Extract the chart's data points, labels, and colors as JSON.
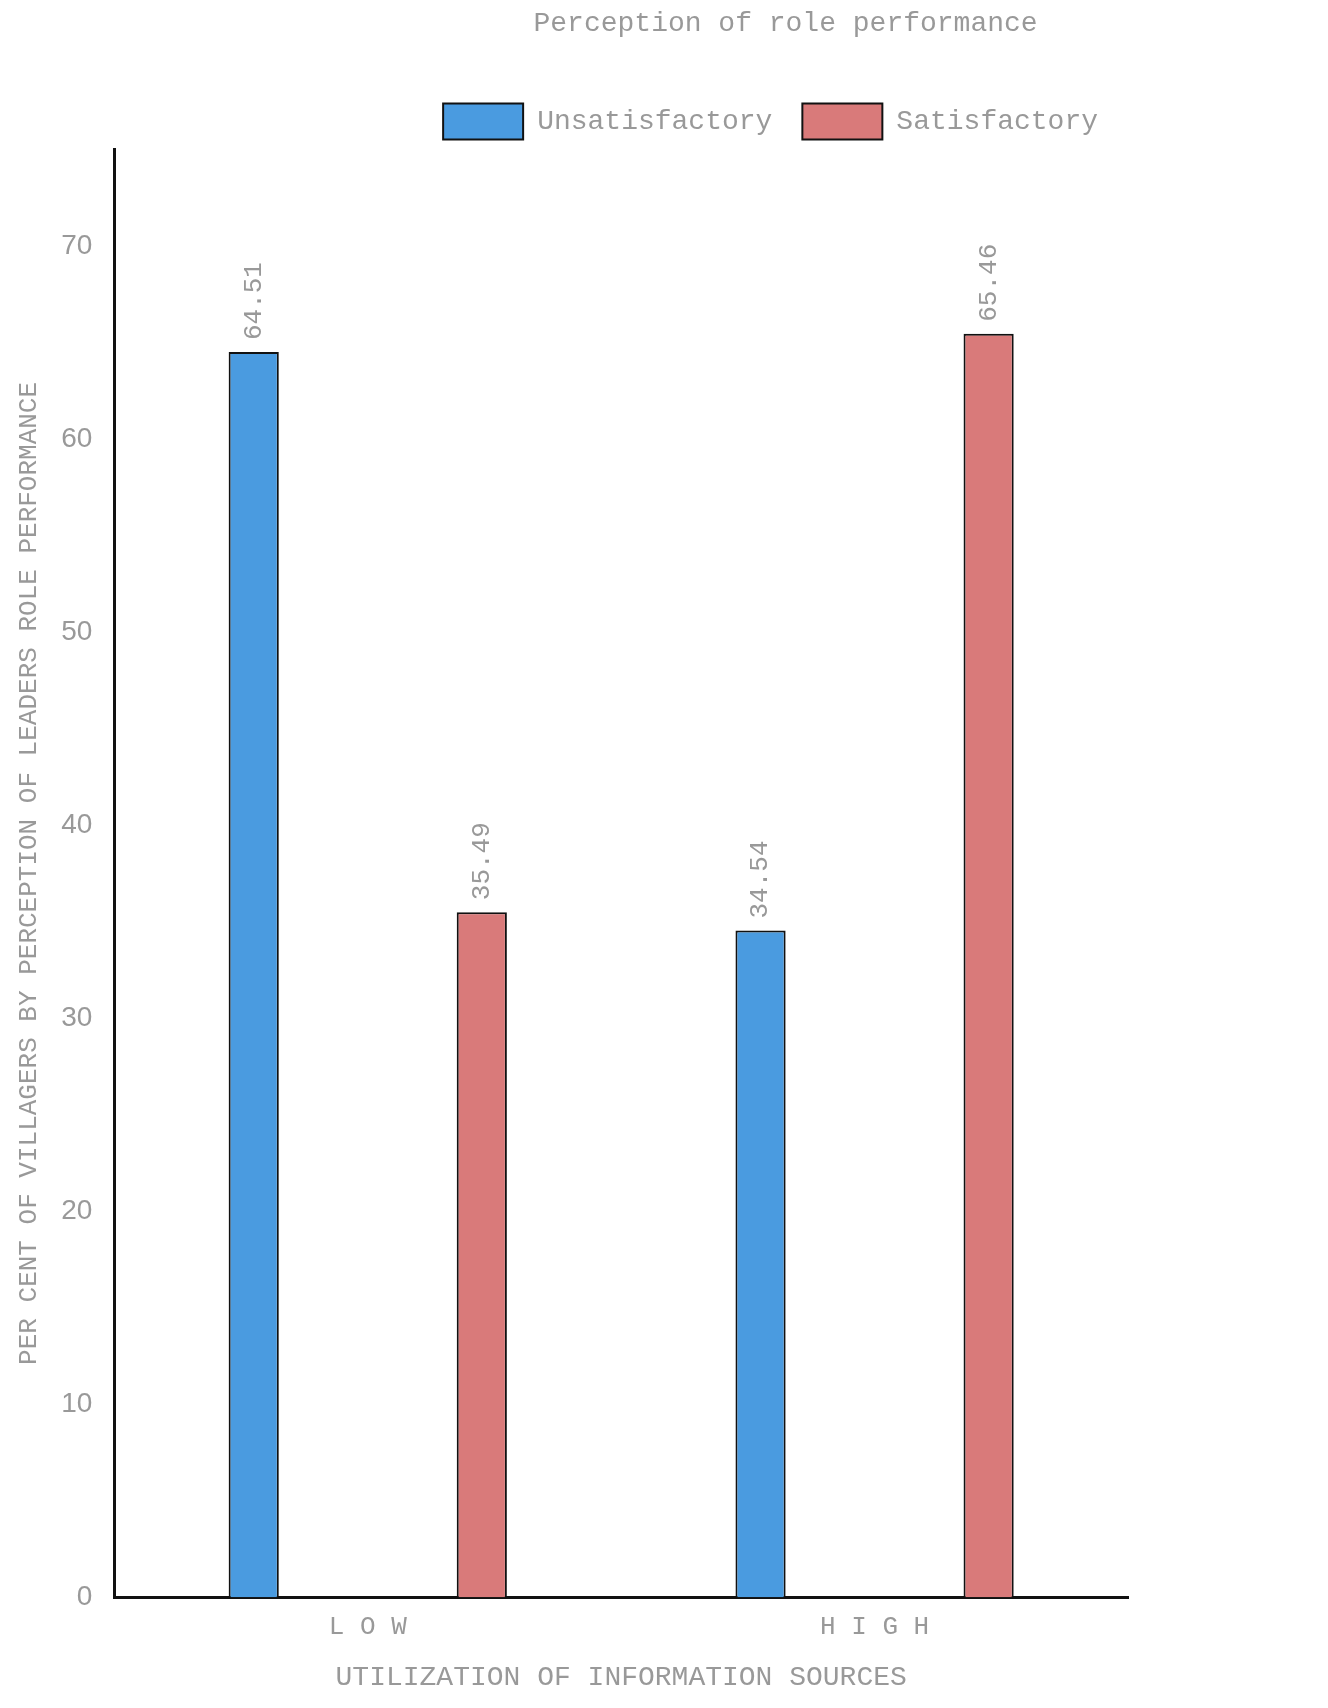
{
  "chart_data": {
    "type": "bar",
    "legend_title": "Perception of role performance",
    "xlabel": "UTILIZATION OF INFORMATION SOURCES",
    "ylabel": "PER CENT OF VILLAGERS BY PERCEPTION OF LEADERS ROLE PERFORMANCE",
    "categories": [
      "L O W",
      "H I G H"
    ],
    "series": [
      {
        "name": "Unsatisfactory",
        "color": "#4a9be0",
        "values": [
          64.51,
          34.54
        ]
      },
      {
        "name": "Satisfactory",
        "color": "#d97a7a",
        "values": [
          35.49,
          65.46
        ]
      }
    ],
    "ylim": [
      0,
      75
    ],
    "yticks": [
      0,
      10,
      20,
      30,
      40,
      50,
      60,
      70
    ],
    "grid": false,
    "legend": "top right",
    "data_labels": true
  }
}
